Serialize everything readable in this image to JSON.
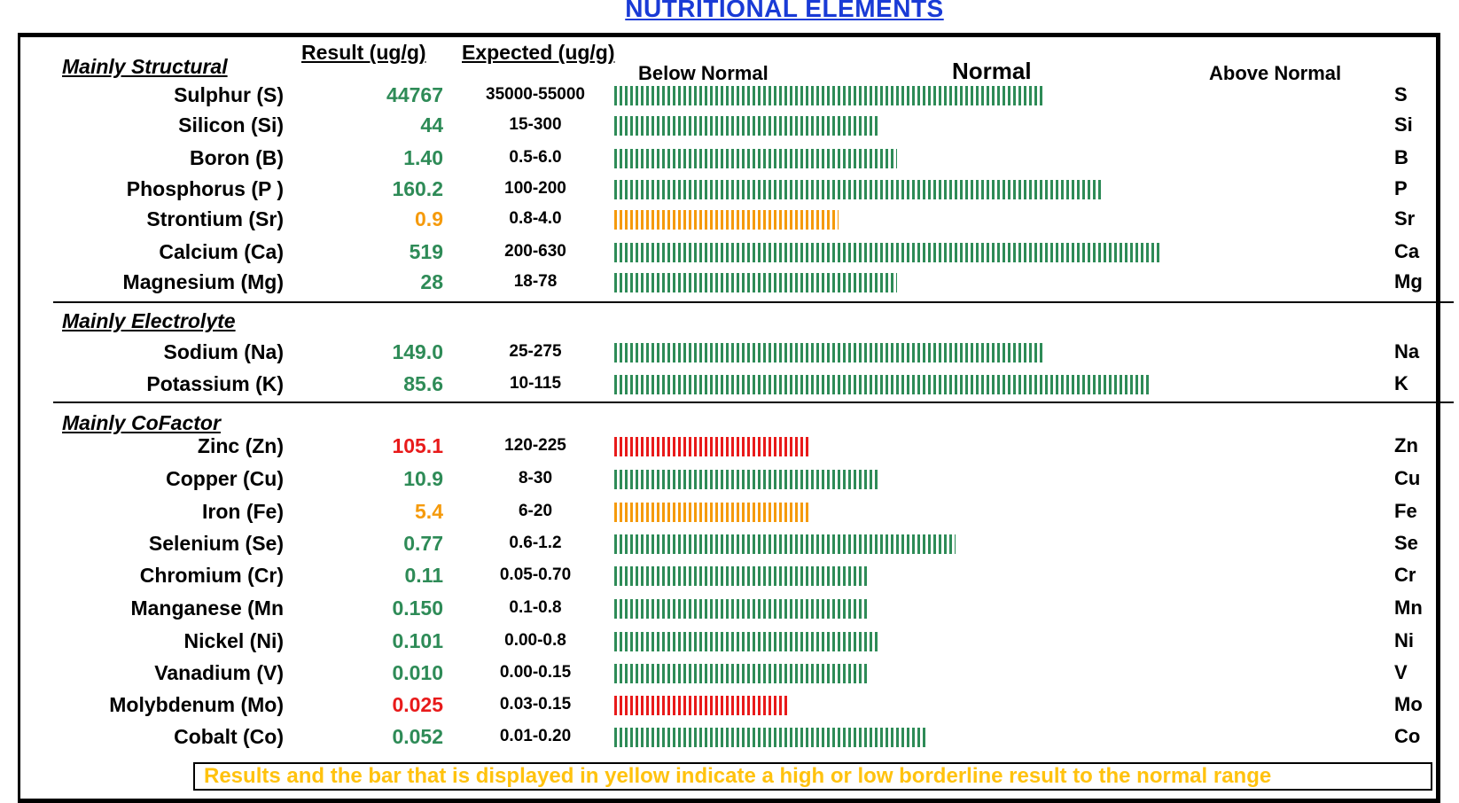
{
  "title": "NUTRITIONAL ELEMENTS",
  "headers": {
    "result": "Result (ug/g)",
    "expected": "Expected (ug/g)",
    "below": "Below Normal",
    "normal": "Normal",
    "above": "Above  Normal"
  },
  "colors": {
    "title": "#1a3bd6",
    "green": "#2e8b57",
    "orange": "#f59a0b",
    "red": "#e81a1a",
    "note": "#ffc20e"
  },
  "sections": [
    {
      "title": "Mainly Structural",
      "rows": [
        {
          "name": "Sulphur (S)",
          "result": "44767",
          "range": "35000-55000",
          "abbr": "S",
          "status": "green",
          "bar_pct": 0.44
        },
        {
          "name": "Silicon (Si)",
          "result": "44",
          "range": "15-300",
          "abbr": "Si",
          "status": "green",
          "bar_pct": 0.27
        },
        {
          "name": "Boron (B)",
          "result": "1.40",
          "range": "0.5-6.0",
          "abbr": "B",
          "status": "green",
          "bar_pct": 0.29
        },
        {
          "name": "Phosphorus (P )",
          "result": "160.2",
          "range": "100-200",
          "abbr": "P",
          "status": "green",
          "bar_pct": 0.5
        },
        {
          "name": "Strontium (Sr)",
          "result": "0.9",
          "range": "0.8-4.0",
          "abbr": "Sr",
          "status": "orange",
          "bar_pct": 0.23
        },
        {
          "name": "Calcium (Ca)",
          "result": "519",
          "range": "200-630",
          "abbr": "Ca",
          "status": "green",
          "bar_pct": 0.56
        },
        {
          "name": "Magnesium (Mg)",
          "result": "28",
          "range": "18-78",
          "abbr": "Mg",
          "status": "green",
          "bar_pct": 0.29
        }
      ]
    },
    {
      "title": "Mainly Electrolyte",
      "rows": [
        {
          "name": "Sodium (Na)",
          "result": "149.0",
          "range": "25-275",
          "abbr": "Na",
          "status": "green",
          "bar_pct": 0.44
        },
        {
          "name": "Potassium (K)",
          "result": "85.6",
          "range": "10-115",
          "abbr": "K",
          "status": "green",
          "bar_pct": 0.55
        }
      ]
    },
    {
      "title": "Mainly CoFactor",
      "rows": [
        {
          "name": "Zinc (Zn)",
          "result": "105.1",
          "range": "120-225",
          "abbr": "Zn",
          "status": "red",
          "bar_pct": 0.2
        },
        {
          "name": "Copper (Cu)",
          "result": "10.9",
          "range": "8-30",
          "abbr": "Cu",
          "status": "green",
          "bar_pct": 0.27
        },
        {
          "name": "Iron (Fe)",
          "result": "5.4",
          "range": "6-20",
          "abbr": "Fe",
          "status": "orange",
          "bar_pct": 0.2
        },
        {
          "name": "Selenium (Se)",
          "result": "0.77",
          "range": "0.6-1.2",
          "abbr": "Se",
          "status": "green",
          "bar_pct": 0.35
        },
        {
          "name": "Chromium (Cr)",
          "result": "0.11",
          "range": "0.05-0.70",
          "abbr": "Cr",
          "status": "green",
          "bar_pct": 0.26
        },
        {
          "name": "Manganese (Mn",
          "result": "0.150",
          "range": "0.1-0.8",
          "abbr": "Mn",
          "status": "green",
          "bar_pct": 0.26
        },
        {
          "name": "Nickel (Ni)",
          "result": "0.101",
          "range": "0.00-0.8",
          "abbr": "Ni",
          "status": "green",
          "bar_pct": 0.27
        },
        {
          "name": "Vanadium (V)",
          "result": "0.010",
          "range": "0.00-0.15",
          "abbr": "V",
          "status": "green",
          "bar_pct": 0.26
        },
        {
          "name": "Molybdenum (Mo)",
          "result": "0.025",
          "range": "0.03-0.15",
          "abbr": "Mo",
          "status": "red",
          "bar_pct": 0.18
        },
        {
          "name": "Cobalt (Co)",
          "result": "0.052",
          "range": "0.01-0.20",
          "abbr": "Co",
          "status": "green",
          "bar_pct": 0.32
        }
      ]
    }
  ],
  "note": "Results and the bar that is displayed in yellow indicate a high or low borderline result to the normal range"
}
